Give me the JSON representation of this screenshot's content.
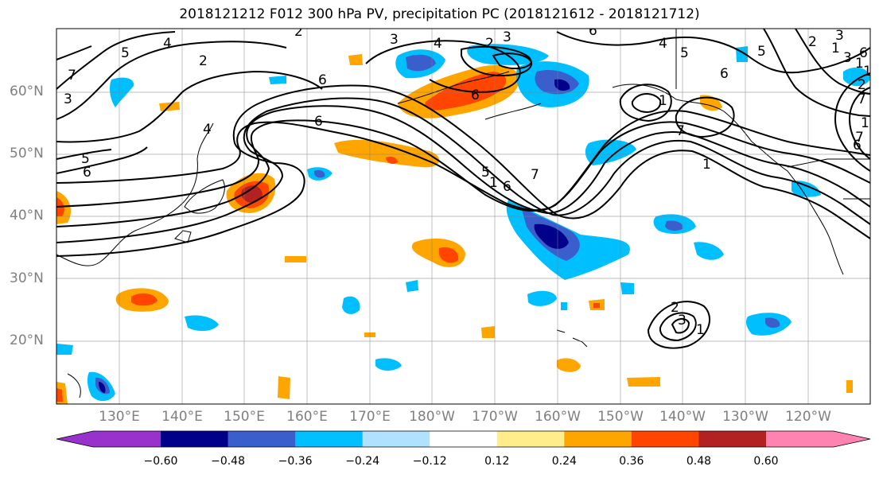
{
  "title": "2018121212 F012 300 hPa PV, precipitation PC (2018121612 - 2018121712)",
  "latitude_labels": [
    "60°N",
    "50°N",
    "40°N",
    "30°N",
    "20°N"
  ],
  "longitude_labels": [
    "130°E",
    "140°E",
    "150°E",
    "160°E",
    "170°E",
    "180°W",
    "170°W",
    "160°W",
    "150°W",
    "140°W",
    "130°W",
    "120°W"
  ],
  "colorbar": {
    "colors": [
      "#9932cc",
      "#00008b",
      "#3a5fcd",
      "#00bfff",
      "#b0e2ff",
      "#ffffff",
      "#ffec8b",
      "#ffa500",
      "#ff4500",
      "#b22222",
      "#ff83b0"
    ],
    "tick_labels": [
      "−0.60",
      "−0.48",
      "−0.36",
      "−0.24",
      "−0.12",
      "0.12",
      "0.24",
      "0.36",
      "0.48",
      "0.60"
    ]
  },
  "contour_labels": [
    "2",
    "3",
    "4",
    "5",
    "6",
    "7",
    "1",
    "2",
    "3",
    "4",
    "5",
    "6",
    "7",
    "1",
    "2",
    "3",
    "6",
    "5",
    "6",
    "1",
    "2",
    "6",
    "1",
    "7",
    "2",
    "3",
    "1",
    "1",
    "7",
    "6",
    "5",
    "4",
    "3",
    "6",
    "4",
    "5",
    "6",
    "7",
    "1",
    "6",
    "2",
    "1",
    "3"
  ]
}
